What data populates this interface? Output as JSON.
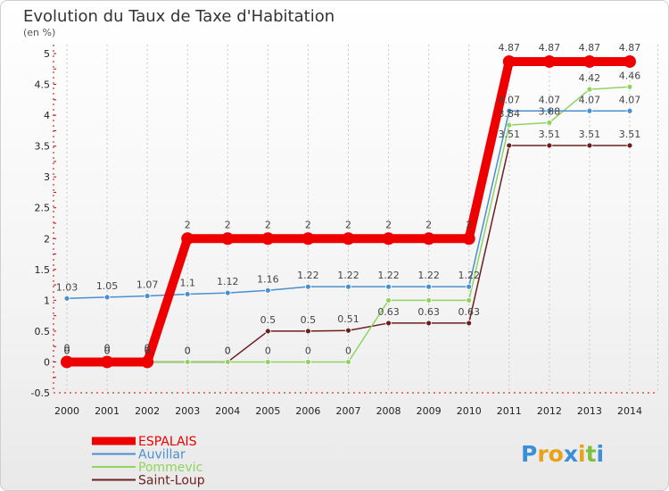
{
  "chart_data": {
    "type": "line",
    "title": "Evolution du Taux de Taxe d'Habitation",
    "ylabel": "(en %)",
    "xlabel": "",
    "ylim": [
      -0.5,
      5
    ],
    "yticks": [
      "-0.5",
      "0",
      "0.5",
      "1",
      "1.5",
      "2",
      "2.5",
      "3",
      "3.5",
      "4",
      "4.5",
      "5"
    ],
    "yticks_values": [
      -0.5,
      0,
      0.5,
      1,
      1.5,
      2,
      2.5,
      3,
      3.5,
      4,
      4.5,
      5
    ],
    "x": [
      "2000",
      "2001",
      "2002",
      "2003",
      "2004",
      "2005",
      "2006",
      "2007",
      "2008",
      "2009",
      "2010",
      "2011",
      "2012",
      "2013",
      "2014"
    ],
    "series": [
      {
        "name": "Saint-Loup",
        "color": "#6b1f1f",
        "values": [
          0,
          0,
          0,
          0,
          0,
          0.5,
          0.5,
          0.51,
          0.63,
          0.63,
          0.63,
          3.51,
          3.51,
          3.51,
          3.51
        ],
        "labels": [
          "0",
          "0",
          "0",
          "0",
          "0",
          "0.5",
          "0.5",
          "0.51",
          "0.63",
          "0.63",
          "0.63",
          "3.51",
          "3.51",
          "3.51",
          "3.51"
        ]
      },
      {
        "name": "Pommevic",
        "color": "#8fd45f",
        "values": [
          0,
          0,
          0,
          0,
          0,
          0,
          0,
          0,
          1,
          1,
          1,
          3.84,
          3.88,
          4.42,
          4.46
        ],
        "labels": [
          "0",
          "0",
          "0",
          "0",
          "0",
          "0",
          "0",
          "0",
          "",
          "",
          "",
          "3.84",
          "3.88",
          "4.42",
          "4.46"
        ]
      },
      {
        "name": "Auvillar",
        "color": "#4a8fd0",
        "values": [
          1.03,
          1.05,
          1.07,
          1.1,
          1.12,
          1.16,
          1.22,
          1.22,
          1.22,
          1.22,
          1.22,
          4.07,
          4.07,
          4.07,
          4.07
        ],
        "labels": [
          "1.03",
          "1.05",
          "1.07",
          "1.1",
          "1.12",
          "1.16",
          "1.22",
          "1.22",
          "1.22",
          "1.22",
          "1.22",
          "4.07",
          "4.07",
          "4.07",
          "4.07"
        ]
      },
      {
        "name": "ESPALAIS",
        "color": "#ee0000",
        "values": [
          0,
          0,
          0,
          2,
          2,
          2,
          2,
          2,
          2,
          2,
          2,
          4.87,
          4.87,
          4.87,
          4.87
        ],
        "labels": [
          "0",
          "0",
          "0",
          "2",
          "2",
          "2",
          "2",
          "2",
          "2",
          "2",
          "2",
          "4.87",
          "4.87",
          "4.87",
          "4.87"
        ]
      }
    ],
    "legend_order": [
      "ESPALAIS",
      "Auvillar",
      "Pommevic",
      "Saint-Loup"
    ],
    "legend_position": "bottom-left"
  },
  "branding": {
    "logo_letters": [
      "P",
      "r",
      "o",
      "x",
      "i",
      "t",
      "i"
    ],
    "logo_colors": [
      "#3a8fd8",
      "#e8a21a",
      "#e8a21a",
      "#3a8fd8",
      "#e8a21a",
      "#7fbf3f",
      "#3a8fd8"
    ]
  }
}
